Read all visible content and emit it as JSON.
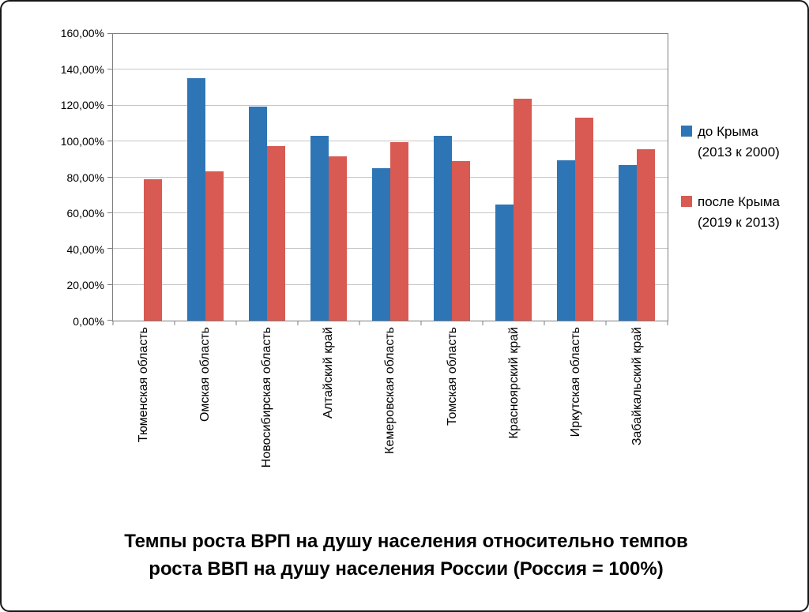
{
  "chart_data": {
    "type": "bar",
    "title": "Темпы роста ВРП на душу населения относительно темпов\nроста ВВП на душу населения России (Россия = 100%)",
    "categories": [
      "Тюменская область",
      "Омская область",
      "Новосибирская область",
      "Алтайский край",
      "Кемеровская область",
      "Томская область",
      "Красноярский край",
      "Иркутская область",
      "Забайкальский край"
    ],
    "series": [
      {
        "name": "до Крыма\n(2013 к 2000)",
        "color": "#2E75B6",
        "values": [
          null,
          135.5,
          119.5,
          103,
          85,
          103,
          65,
          89.5,
          87
        ]
      },
      {
        "name": "после Крыма\n(2019 к 2013)",
        "color": "#D85A52",
        "values": [
          79,
          83.5,
          97.5,
          91.5,
          99.5,
          89,
          124,
          113.5,
          95.5
        ]
      }
    ],
    "y_ticks": [
      {
        "v": 0,
        "label": "0,00%"
      },
      {
        "v": 20,
        "label": "20,00%"
      },
      {
        "v": 40,
        "label": "40,00%"
      },
      {
        "v": 60,
        "label": "60,00%"
      },
      {
        "v": 80,
        "label": "80,00%"
      },
      {
        "v": 100,
        "label": "100,00%"
      },
      {
        "v": 120,
        "label": "120,00%"
      },
      {
        "v": 140,
        "label": "140,00%"
      },
      {
        "v": 160,
        "label": "160,00%"
      }
    ],
    "ylim": [
      0,
      160
    ],
    "grid": true,
    "legend_position": "right",
    "x_label_rotation": 90,
    "colors": {
      "grid": "#C6C6C6",
      "plot_border": "#7F7F7F",
      "axis_text": "#000000",
      "background": "#FFFFFF",
      "frame_border": "#161616"
    }
  }
}
